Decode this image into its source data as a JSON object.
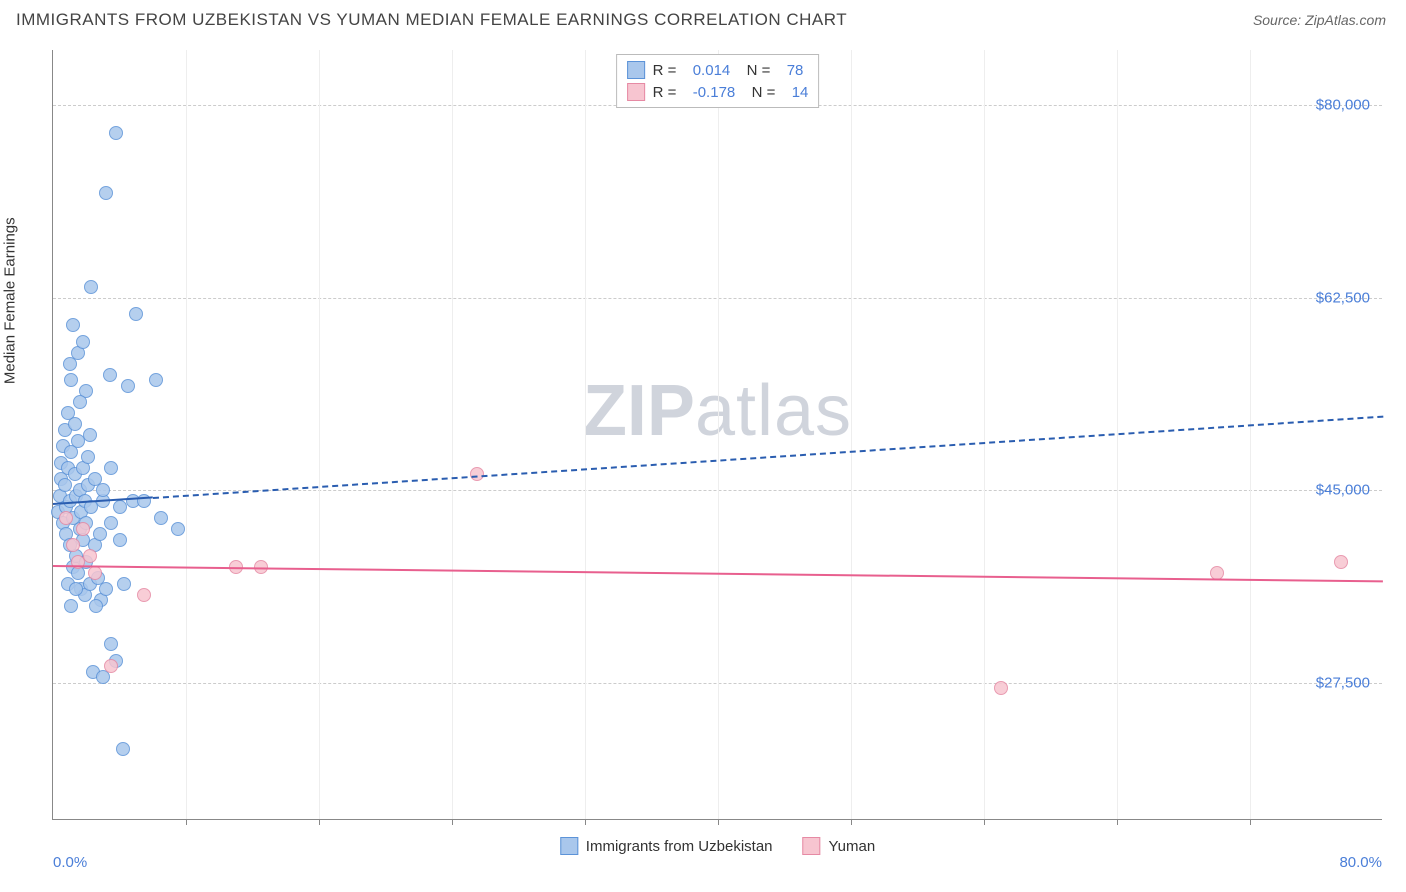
{
  "title": "IMMIGRANTS FROM UZBEKISTAN VS YUMAN MEDIAN FEMALE EARNINGS CORRELATION CHART",
  "source": "Source: ZipAtlas.com",
  "ylabel": "Median Female Earnings",
  "watermark_left": "ZIP",
  "watermark_right": "atlas",
  "chart": {
    "type": "scatter",
    "xlim": [
      0,
      80
    ],
    "ylim": [
      15000,
      85000
    ],
    "yticks": [
      {
        "v": 27500,
        "label": "$27,500"
      },
      {
        "v": 45000,
        "label": "$45,000"
      },
      {
        "v": 62500,
        "label": "$62,500"
      },
      {
        "v": 80000,
        "label": "$80,000"
      }
    ],
    "xticks_minor": [
      8,
      16,
      24,
      32,
      40,
      48,
      56,
      64,
      72
    ],
    "xtick_labels": [
      {
        "v": 0,
        "label": "0.0%",
        "align": "left"
      },
      {
        "v": 80,
        "label": "80.0%",
        "align": "right"
      }
    ],
    "background_color": "#ffffff",
    "grid_color": "#cccccc",
    "series": [
      {
        "name": "Immigrants from Uzbekistan",
        "fill": "#a9c7ec",
        "stroke": "#5c93d8",
        "trend_color": "#2a5db0",
        "R": "0.014",
        "N": "78",
        "trend": {
          "x1": 0,
          "y1": 43800,
          "x2": 80,
          "y2": 51800,
          "dash_from_x": 6
        },
        "points": [
          [
            0.3,
            43000
          ],
          [
            0.4,
            44500
          ],
          [
            0.5,
            46000
          ],
          [
            0.5,
            47500
          ],
          [
            0.6,
            42000
          ],
          [
            0.6,
            49000
          ],
          [
            0.7,
            45500
          ],
          [
            0.7,
            50500
          ],
          [
            0.8,
            41000
          ],
          [
            0.8,
            43500
          ],
          [
            0.9,
            47000
          ],
          [
            0.9,
            52000
          ],
          [
            1.0,
            40000
          ],
          [
            1.0,
            44000
          ],
          [
            1.1,
            48500
          ],
          [
            1.1,
            55000
          ],
          [
            1.2,
            38000
          ],
          [
            1.2,
            42500
          ],
          [
            1.3,
            46500
          ],
          [
            1.3,
            51000
          ],
          [
            1.4,
            39000
          ],
          [
            1.4,
            44500
          ],
          [
            1.5,
            37500
          ],
          [
            1.5,
            49500
          ],
          [
            1.6,
            41500
          ],
          [
            1.6,
            45000
          ],
          [
            1.7,
            36000
          ],
          [
            1.7,
            43000
          ],
          [
            1.8,
            40500
          ],
          [
            1.8,
            47000
          ],
          [
            1.9,
            35500
          ],
          [
            1.9,
            44000
          ],
          [
            2.0,
            38500
          ],
          [
            2.0,
            42000
          ],
          [
            2.1,
            45500
          ],
          [
            2.1,
            48000
          ],
          [
            2.2,
            36500
          ],
          [
            2.2,
            50000
          ],
          [
            2.3,
            43500
          ],
          [
            2.4,
            28500
          ],
          [
            2.5,
            40000
          ],
          [
            2.5,
            46000
          ],
          [
            2.7,
            37000
          ],
          [
            2.8,
            41000
          ],
          [
            2.9,
            35000
          ],
          [
            3.0,
            28000
          ],
          [
            3.0,
            44000
          ],
          [
            3.2,
            36000
          ],
          [
            3.4,
            55500
          ],
          [
            3.5,
            31000
          ],
          [
            3.5,
            42000
          ],
          [
            3.8,
            29500
          ],
          [
            4.0,
            40500
          ],
          [
            4.2,
            21500
          ],
          [
            2.3,
            63500
          ],
          [
            1.5,
            57500
          ],
          [
            1.8,
            58500
          ],
          [
            1.2,
            60000
          ],
          [
            1.0,
            56500
          ],
          [
            2.0,
            54000
          ],
          [
            3.8,
            77500
          ],
          [
            3.2,
            72000
          ],
          [
            5.0,
            61000
          ],
          [
            6.2,
            55000
          ],
          [
            4.5,
            54500
          ],
          [
            3.0,
            45000
          ],
          [
            3.5,
            47000
          ],
          [
            4.0,
            43500
          ],
          [
            4.8,
            44000
          ],
          [
            5.5,
            44000
          ],
          [
            6.5,
            42500
          ],
          [
            1.6,
            53000
          ],
          [
            0.9,
            36500
          ],
          [
            1.1,
            34500
          ],
          [
            1.4,
            36000
          ],
          [
            2.6,
            34500
          ],
          [
            7.5,
            41500
          ],
          [
            4.3,
            36500
          ]
        ]
      },
      {
        "name": "Yuman",
        "fill": "#f7c5d0",
        "stroke": "#e68aa4",
        "trend_color": "#e85f8e",
        "R": "-0.178",
        "N": "14",
        "trend": {
          "x1": 0,
          "y1": 38200,
          "x2": 80,
          "y2": 36800,
          "dash_from_x": 999
        },
        "points": [
          [
            0.8,
            42500
          ],
          [
            1.2,
            40000
          ],
          [
            1.5,
            38500
          ],
          [
            1.8,
            41500
          ],
          [
            2.2,
            39000
          ],
          [
            2.5,
            37500
          ],
          [
            3.5,
            29000
          ],
          [
            5.5,
            35500
          ],
          [
            11.0,
            38000
          ],
          [
            12.5,
            38000
          ],
          [
            25.5,
            46500
          ],
          [
            57.0,
            27000
          ],
          [
            70.0,
            37500
          ],
          [
            77.5,
            38500
          ]
        ]
      }
    ],
    "bottom_legend": [
      {
        "label": "Immigrants from Uzbekistan",
        "fill": "#a9c7ec",
        "stroke": "#5c93d8"
      },
      {
        "label": "Yuman",
        "fill": "#f7c5d0",
        "stroke": "#e68aa4"
      }
    ],
    "point_radius": 7
  }
}
